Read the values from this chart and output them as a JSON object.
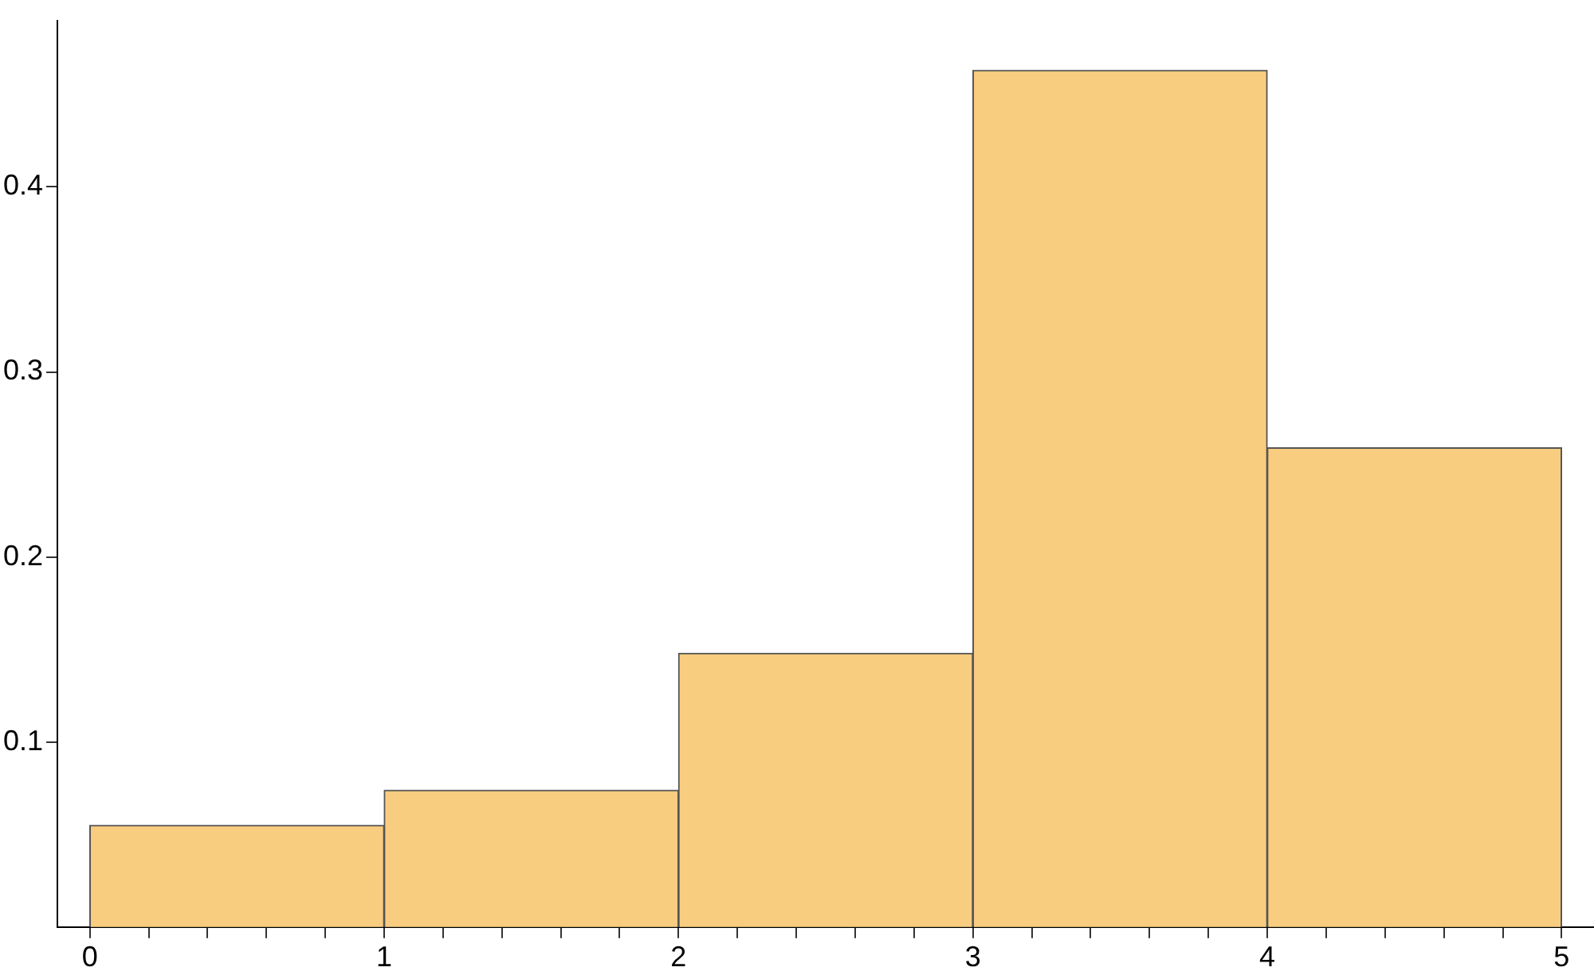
{
  "chart_data": {
    "type": "histogram",
    "bins": [
      0,
      1,
      2,
      3,
      4,
      5
    ],
    "values": [
      0.055,
      0.074,
      0.148,
      0.463,
      0.259
    ],
    "color": "#f9cd80",
    "xlim": [
      -0.11,
      5.11
    ],
    "ylim": [
      0,
      0.49
    ],
    "xticks": [
      0,
      {
        "value": 0.2,
        "label": null
      },
      {
        "value": 0.4,
        "label": null
      },
      {
        "value": 0.6,
        "label": null
      },
      {
        "value": 0.8,
        "label": null
      },
      1,
      {
        "value": 1.2,
        "label": null
      },
      {
        "value": 1.4,
        "label": null
      },
      {
        "value": 1.6,
        "label": null
      },
      {
        "value": 1.8,
        "label": null
      },
      2,
      {
        "value": 2.2,
        "label": null
      },
      {
        "value": 2.4,
        "label": null
      },
      {
        "value": 2.6,
        "label": null
      },
      {
        "value": 2.8,
        "label": null
      },
      3,
      {
        "value": 3.2,
        "label": null
      },
      {
        "value": 3.4,
        "label": null
      },
      {
        "value": 3.6,
        "label": null
      },
      {
        "value": 3.8,
        "label": null
      },
      4,
      {
        "value": 4.2,
        "label": null
      },
      {
        "value": 4.4,
        "label": null
      },
      {
        "value": 4.6,
        "label": null
      },
      {
        "value": 4.8,
        "label": null
      },
      5
    ],
    "yticks": [
      0.1,
      0.2,
      0.3,
      0.4
    ],
    "grid": false,
    "legend": false
  }
}
